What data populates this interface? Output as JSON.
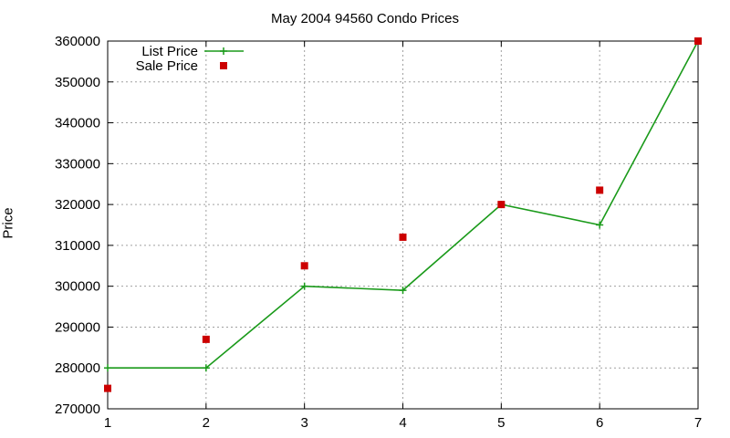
{
  "chart_data": {
    "type": "line",
    "title": "May 2004 94560 Condo Prices",
    "xlabel": "",
    "ylabel": "Price",
    "xlim": [
      1,
      7
    ],
    "ylim": [
      270000,
      360000
    ],
    "x_ticks": [
      1,
      2,
      3,
      4,
      5,
      6,
      7
    ],
    "y_ticks": [
      270000,
      280000,
      290000,
      300000,
      310000,
      320000,
      330000,
      340000,
      350000,
      360000
    ],
    "grid": true,
    "legend_position": "top-left",
    "series": [
      {
        "name": "List Price",
        "style": "line-with-plus-markers",
        "color": "#1a9a1a",
        "x": [
          1,
          2,
          3,
          4,
          5,
          6,
          7
        ],
        "y": [
          280000,
          280000,
          300000,
          299000,
          320000,
          315000,
          360000
        ]
      },
      {
        "name": "Sale Price",
        "style": "square-markers",
        "color": "#cc0000",
        "x": [
          1,
          2,
          3,
          4,
          5,
          6,
          7
        ],
        "y": [
          275000,
          287000,
          305000,
          312000,
          320000,
          323500,
          360000
        ]
      }
    ]
  }
}
